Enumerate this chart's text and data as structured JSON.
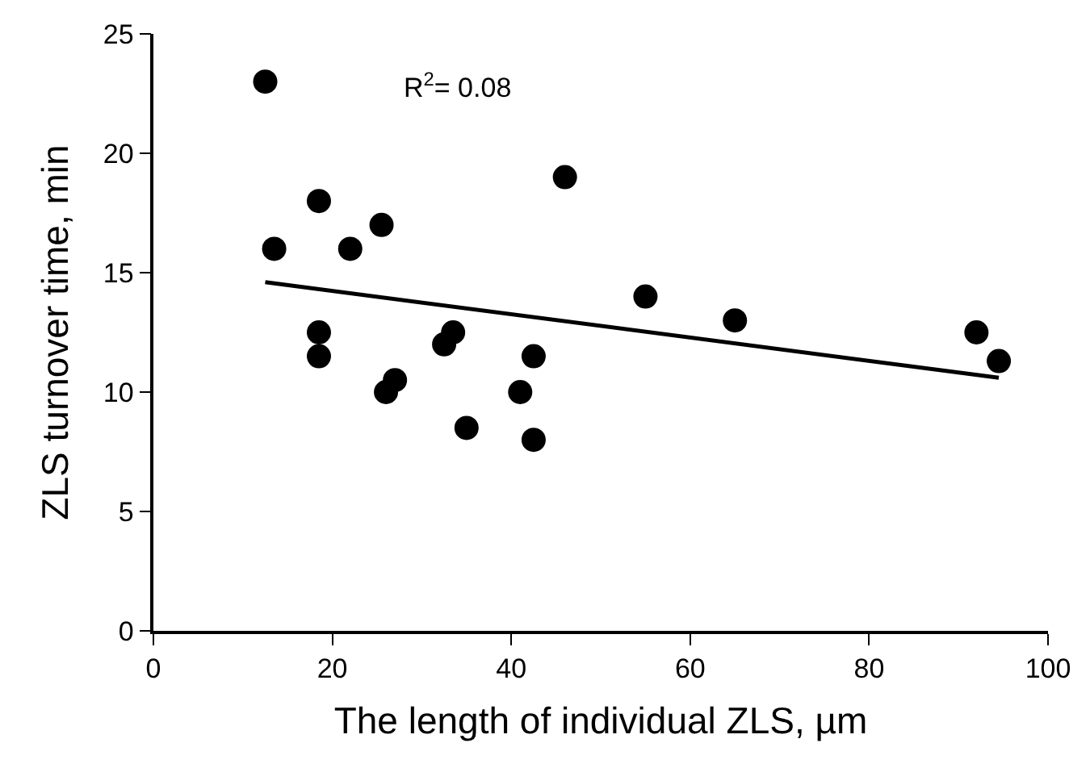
{
  "chart_data": {
    "type": "scatter",
    "xlabel": "The length of individual ZLS, µm",
    "ylabel": "ZLS turnover time, min",
    "annotations": [
      "R$^{2}$= 0.08"
    ],
    "series": [
      {
        "marker": "circle",
        "color": "#000000",
        "x": [
          12.5,
          13.5,
          18.5,
          18.5,
          18.5,
          22,
          25.5,
          26,
          27,
          32.5,
          33.5,
          35,
          41,
          42.5,
          42.5,
          46,
          55,
          65,
          92,
          94.5
        ],
        "values": [
          23,
          16,
          18,
          12.5,
          11.5,
          16,
          17,
          10,
          10.5,
          12,
          12.5,
          8.5,
          10,
          11.5,
          8,
          19,
          14,
          13,
          12.5,
          11.3
        ]
      },
      {
        "type": "line",
        "marker": "none",
        "color": "#000000",
        "x": [
          12.5,
          94.5
        ],
        "values": [
          14.6,
          10.6
        ]
      }
    ],
    "xlim": [
      0,
      100
    ],
    "xticks": [
      0,
      20,
      40,
      60,
      80,
      100
    ],
    "ylim": [
      0,
      25
    ],
    "yticks": [
      0,
      5,
      10,
      15,
      20,
      25
    ],
    "legend": false
  }
}
